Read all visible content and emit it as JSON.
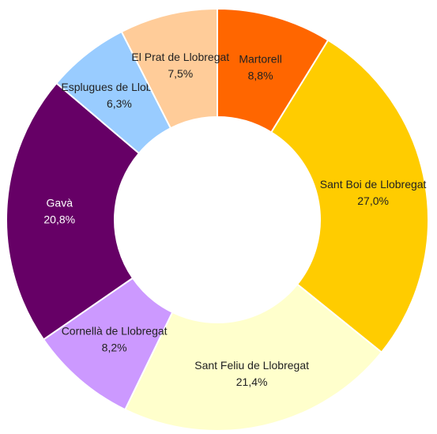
{
  "chart_data": {
    "type": "donut",
    "categories": [
      "Martorell",
      "Sant Boi de Llobregat",
      "Sant Feliu de Llobregat",
      "Cornellà de Llobregat",
      "Gavà",
      "Esplugues de Llobregat",
      "El Prat de Llobregat"
    ],
    "values": [
      8.8,
      27.0,
      21.4,
      8.2,
      20.8,
      6.3,
      7.5
    ],
    "value_labels": [
      "8,8%",
      "27,0%",
      "21,4%",
      "8,2%",
      "20,8%",
      "6,3%",
      "7,5%"
    ],
    "colors": [
      "#ff6600",
      "#ffcc00",
      "#ffffcc",
      "#cc99ff",
      "#660066",
      "#99ccff",
      "#ffcc99"
    ]
  }
}
